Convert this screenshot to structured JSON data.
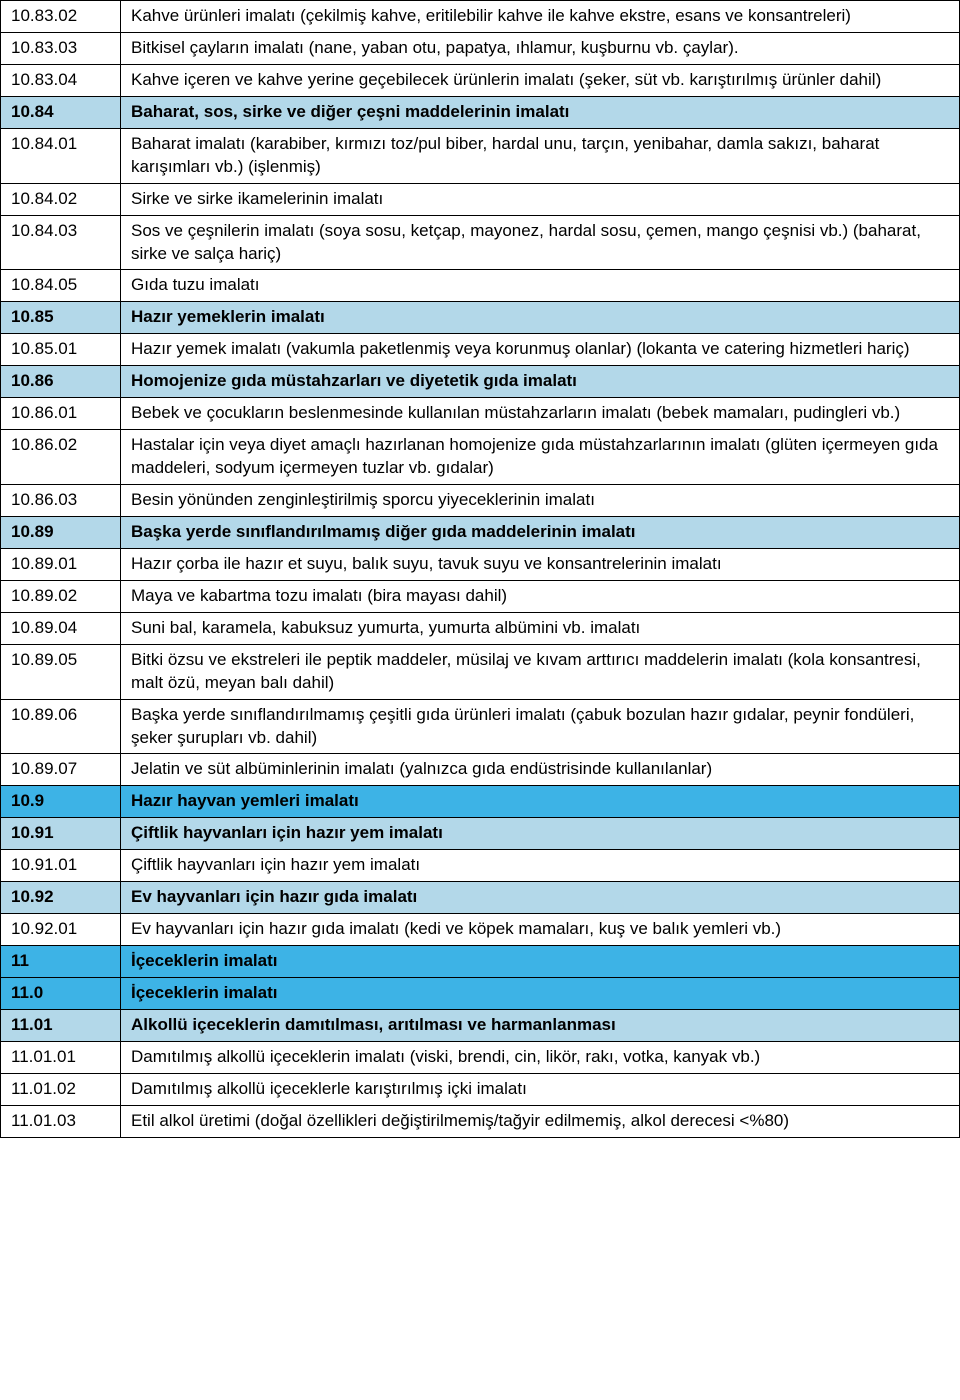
{
  "colors": {
    "catBlue": "#3db3e6",
    "catLight": "#b3d8e9",
    "text": "#000000",
    "border": "#000000",
    "background": "#ffffff"
  },
  "fontSize": 17,
  "rows": [
    {
      "code": "10.83.02",
      "desc": "Kahve ürünleri imalatı (çekilmiş kahve, eritilebilir kahve ile kahve ekstre, esans ve konsantreleri)",
      "type": "normal"
    },
    {
      "code": "10.83.03",
      "desc": "Bitkisel çayların imalatı (nane, yaban otu, papatya, ıhlamur, kuşburnu vb. çaylar).",
      "type": "normal"
    },
    {
      "code": "10.83.04",
      "desc": "Kahve içeren ve kahve yerine geçebilecek ürünlerin imalatı (şeker, süt vb. karıştırılmış ürünler dahil)",
      "type": "normal"
    },
    {
      "code": "10.84",
      "desc": "Baharat, sos, sirke ve diğer çeşni maddelerinin imalatı",
      "type": "cat-light"
    },
    {
      "code": "10.84.01",
      "desc": "Baharat imalatı (karabiber, kırmızı toz/pul biber, hardal unu, tarçın, yenibahar, damla sakızı, baharat karışımları vb.) (işlenmiş)",
      "type": "normal"
    },
    {
      "code": "10.84.02",
      "desc": "Sirke ve sirke ikamelerinin imalatı",
      "type": "normal"
    },
    {
      "code": "10.84.03",
      "desc": "Sos ve çeşnilerin imalatı (soya sosu, ketçap, mayonez, hardal sosu, çemen, mango çeşnisi vb.) (baharat, sirke ve salça hariç)",
      "type": "normal"
    },
    {
      "code": "10.84.05",
      "desc": "Gıda tuzu imalatı",
      "type": "normal"
    },
    {
      "code": "10.85",
      "desc": "Hazır yemeklerin imalatı",
      "type": "cat-light"
    },
    {
      "code": "10.85.01",
      "desc": "Hazır yemek imalatı (vakumla paketlenmiş veya korunmuş olanlar) (lokanta ve catering hizmetleri hariç)",
      "type": "normal"
    },
    {
      "code": "10.86",
      "desc": "Homojenize gıda müstahzarları ve diyetetik gıda imalatı",
      "type": "cat-light"
    },
    {
      "code": "10.86.01",
      "desc": "Bebek ve çocukların beslenmesinde kullanılan müstahzarların imalatı (bebek mamaları, pudingleri vb.)",
      "type": "normal"
    },
    {
      "code": "10.86.02",
      "desc": "Hastalar için veya diyet amaçlı hazırlanan homojenize gıda müstahzarlarının imalatı (glüten içermeyen gıda maddeleri, sodyum içermeyen tuzlar vb. gıdalar)",
      "type": "normal"
    },
    {
      "code": "10.86.03",
      "desc": "Besin yönünden zenginleştirilmiş sporcu yiyeceklerinin imalatı",
      "type": "normal"
    },
    {
      "code": "10.89",
      "desc": "Başka yerde sınıflandırılmamış diğer gıda maddelerinin imalatı",
      "type": "cat-light"
    },
    {
      "code": "10.89.01",
      "desc": "Hazır çorba ile hazır et suyu, balık suyu, tavuk suyu ve konsantrelerinin imalatı",
      "type": "normal"
    },
    {
      "code": "10.89.02",
      "desc": "Maya ve kabartma tozu imalatı (bira mayası dahil)",
      "type": "normal"
    },
    {
      "code": "10.89.04",
      "desc": "Suni bal, karamela, kabuksuz yumurta, yumurta albümini vb. imalatı",
      "type": "normal"
    },
    {
      "code": "10.89.05",
      "desc": "Bitki özsu ve ekstreleri ile peptik maddeler, müsilaj ve kıvam arttırıcı maddelerin imalatı (kola konsantresi, malt özü, meyan balı dahil)",
      "type": "normal"
    },
    {
      "code": "10.89.06",
      "desc": "Başka yerde sınıflandırılmamış çeşitli gıda ürünleri imalatı (çabuk bozulan hazır gıdalar, peynir fondüleri, şeker şurupları vb. dahil)",
      "type": "normal"
    },
    {
      "code": "10.89.07",
      "desc": "Jelatin ve süt albüminlerinin imalatı (yalnızca gıda endüstrisinde kullanılanlar)",
      "type": "normal"
    },
    {
      "code": "10.9",
      "desc": "Hazır hayvan yemleri imalatı",
      "type": "cat-blue"
    },
    {
      "code": "10.91",
      "desc": "Çiftlik hayvanları için hazır yem imalatı",
      "type": "cat-light"
    },
    {
      "code": "10.91.01",
      "desc": "Çiftlik hayvanları için hazır yem imalatı",
      "type": "normal"
    },
    {
      "code": "10.92",
      "desc": "Ev hayvanları için hazır gıda imalatı",
      "type": "cat-light"
    },
    {
      "code": "10.92.01",
      "desc": "Ev hayvanları için hazır gıda imalatı (kedi ve köpek mamaları, kuş ve balık yemleri vb.)",
      "type": "normal"
    },
    {
      "code": "11",
      "desc": "İçeceklerin imalatı",
      "type": "cat-blue"
    },
    {
      "code": "11.0",
      "desc": "İçeceklerin imalatı",
      "type": "cat-blue"
    },
    {
      "code": "11.01",
      "desc": "Alkollü içeceklerin damıtılması, arıtılması ve harmanlanması",
      "type": "cat-light"
    },
    {
      "code": "11.01.01",
      "desc": "Damıtılmış alkollü içeceklerin imalatı (viski, brendi, cin, likör, rakı, votka, kanyak vb.)",
      "type": "normal"
    },
    {
      "code": "11.01.02",
      "desc": "Damıtılmış alkollü içeceklerle karıştırılmış içki imalatı",
      "type": "normal"
    },
    {
      "code": "11.01.03",
      "desc": "Etil alkol üretimi (doğal özellikleri değiştirilmemiş/tağyir edilmemiş, alkol derecesi <%80)",
      "type": "normal"
    }
  ]
}
